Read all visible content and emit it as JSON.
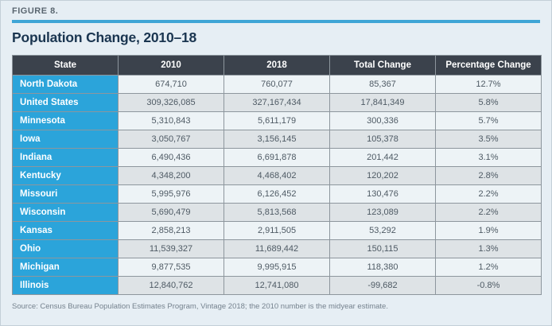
{
  "figure_label": "FIGURE 8.",
  "title": "Population Change, 2010–18",
  "source_note": "Source: Census Bureau Population Estimates Program, Vintage 2018; the 2010 number is the midyear estimate.",
  "colors": {
    "accent_blue": "#3fa5d6",
    "state_cell_blue": "#2ba4da",
    "header_dark": "#3b424c",
    "title_navy": "#1a3550",
    "row_light": "#edf3f6",
    "row_shaded": "#dee3e6",
    "page_background": "#e6eef4",
    "border_gray": "#8d969d"
  },
  "chart_data": {
    "type": "table",
    "title": "Population Change, 2010–18",
    "columns": [
      "State",
      "2010",
      "2018",
      "Total Change",
      "Percentage Change"
    ],
    "rows": [
      [
        "North Dakota",
        "674,710",
        "760,077",
        "85,367",
        "12.7%"
      ],
      [
        "United States",
        "309,326,085",
        "327,167,434",
        "17,841,349",
        "5.8%"
      ],
      [
        "Minnesota",
        "5,310,843",
        "5,611,179",
        "300,336",
        "5.7%"
      ],
      [
        "Iowa",
        "3,050,767",
        "3,156,145",
        "105,378",
        "3.5%"
      ],
      [
        "Indiana",
        "6,490,436",
        "6,691,878",
        "201,442",
        "3.1%"
      ],
      [
        "Kentucky",
        "4,348,200",
        "4,468,402",
        "120,202",
        "2.8%"
      ],
      [
        "Missouri",
        "5,995,976",
        "6,126,452",
        "130,476",
        "2.2%"
      ],
      [
        "Wisconsin",
        "5,690,479",
        "5,813,568",
        "123,089",
        "2.2%"
      ],
      [
        "Kansas",
        "2,858,213",
        "2,911,505",
        "53,292",
        "1.9%"
      ],
      [
        "Ohio",
        "11,539,327",
        "11,689,442",
        "150,115",
        "1.3%"
      ],
      [
        "Michigan",
        "9,877,535",
        "9,995,915",
        "118,380",
        "1.2%"
      ],
      [
        "Illinois",
        "12,840,762",
        "12,741,080",
        "-99,682",
        "-0.8%"
      ]
    ]
  }
}
